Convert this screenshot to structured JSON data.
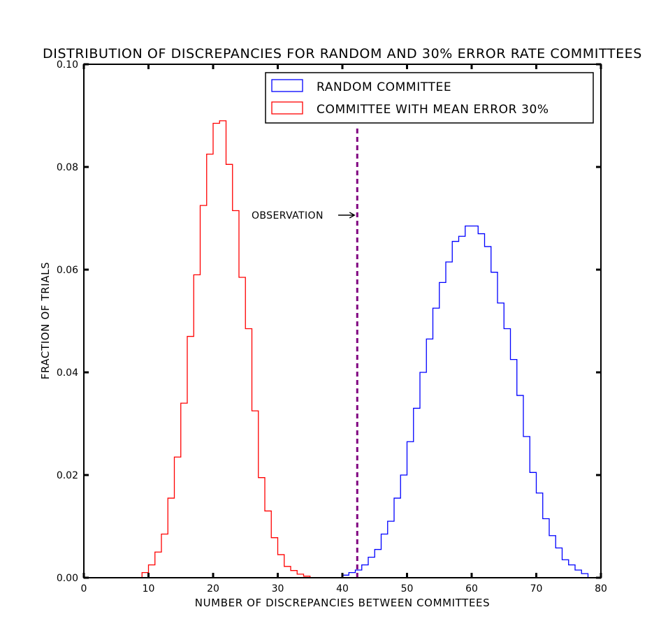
{
  "chart_data": {
    "type": "histogram",
    "title": "DISTRIBUTION OF DISCREPANCIES FOR RANDOM AND 30% ERROR RATE COMMITTEES",
    "xlabel": "NUMBER OF DISCREPANCIES BETWEEN COMMITTEES",
    "ylabel": "FRACTION OF TRIALS",
    "xlim": [
      0,
      80
    ],
    "ylim": [
      0,
      0.1
    ],
    "x_ticks": [
      0,
      10,
      20,
      30,
      40,
      50,
      60,
      70,
      80
    ],
    "x_tick_labels": [
      "0",
      "10",
      "20",
      "30",
      "40",
      "50",
      "60",
      "70",
      "80"
    ],
    "y_ticks": [
      0,
      0.02,
      0.04,
      0.06,
      0.08,
      0.1
    ],
    "y_tick_labels": [
      "0.00",
      "0.02",
      "0.04",
      "0.06",
      "0.08",
      "0.10"
    ],
    "grid": false,
    "legend_position": "top-right",
    "series": [
      {
        "name": "RANDOM COMMITTEE",
        "color": "#0000ff",
        "bin_start": 40,
        "bin_width": 1,
        "values": [
          0.0005,
          0.001,
          0.0015,
          0.0025,
          0.004,
          0.0055,
          0.0085,
          0.011,
          0.0155,
          0.02,
          0.0265,
          0.033,
          0.04,
          0.0465,
          0.0525,
          0.0575,
          0.0615,
          0.0655,
          0.0665,
          0.0685,
          0.0685,
          0.067,
          0.0645,
          0.0595,
          0.0535,
          0.0485,
          0.0425,
          0.0355,
          0.0275,
          0.0205,
          0.0165,
          0.0115,
          0.0082,
          0.0058,
          0.0035,
          0.0025,
          0.0015,
          0.0008
        ]
      },
      {
        "name": "COMMITTEE WITH MEAN ERROR 30%",
        "color": "#ff0000",
        "bin_start": 9,
        "bin_width": 1,
        "values": [
          0.001,
          0.0025,
          0.005,
          0.0085,
          0.0155,
          0.0235,
          0.034,
          0.047,
          0.059,
          0.0725,
          0.0825,
          0.0885,
          0.089,
          0.0805,
          0.0715,
          0.0585,
          0.0485,
          0.0325,
          0.0195,
          0.013,
          0.0078,
          0.0045,
          0.0022,
          0.0014,
          0.0007,
          0.0003
        ]
      }
    ],
    "vline": {
      "x": 42.3,
      "color": "#800080",
      "style": "dashed"
    },
    "annotation": {
      "text": "OBSERVATION",
      "arrow": "->",
      "x": 42,
      "y": 0.0705
    }
  }
}
